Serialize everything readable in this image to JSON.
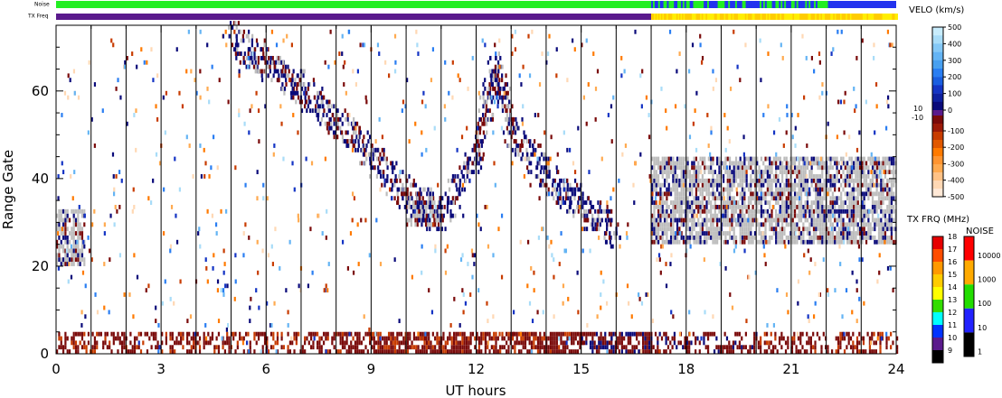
{
  "chart_data": {
    "type": "heatmap",
    "xlabel": "UT hours",
    "ylabel": "Range Gate",
    "xlim": [
      0,
      24
    ],
    "ylim": [
      0,
      75
    ],
    "x_ticks": [
      "0",
      "3",
      "6",
      "9",
      "12",
      "15",
      "18",
      "21",
      "24"
    ],
    "y_ticks": [
      "0",
      "20",
      "40",
      "60"
    ],
    "top_bars": {
      "noise_label": "Noise",
      "txfreq_label": "TX Freq",
      "noise_segments": [
        {
          "from": 0,
          "to": 17,
          "level": "green"
        },
        {
          "from": 17,
          "to": 22.2,
          "level": "mixed-blue-green"
        },
        {
          "from": 22.2,
          "to": 24,
          "level": "blue"
        }
      ],
      "txfreq_segments": [
        {
          "from": 0,
          "to": 17,
          "mhz": 10
        },
        {
          "from": 17,
          "to": 24,
          "mhz": 14.5
        }
      ]
    },
    "ground_scatter_bands": [
      {
        "x_from": 0,
        "x_to": 0.8,
        "gate_from": 20,
        "gate_to": 33
      },
      {
        "x_from": 10,
        "x_to": 11,
        "gate_from": 29,
        "gate_to": 35
      },
      {
        "x_from": 17,
        "x_to": 24,
        "gate_from": 25,
        "gate_to": 45
      }
    ],
    "legends": {
      "velocity": {
        "title": "VELO (km/s)",
        "positive_ticks": [
          "500",
          "400",
          "300",
          "200",
          "100",
          "0"
        ],
        "small_ticks": [
          "10",
          "-10"
        ],
        "negative_ticks": [
          "-100",
          "-200",
          "-300",
          "-400",
          "-500"
        ]
      },
      "txfreq": {
        "title": "TX FRQ (MHz)",
        "ticks": [
          "18",
          "17",
          "16",
          "15",
          "14",
          "13",
          "12",
          "11",
          "10",
          "9"
        ],
        "colors": [
          "#e60000",
          "#ff4d00",
          "#ff9900",
          "#ffcc00",
          "#ffff00",
          "#33dd00",
          "#00ffff",
          "#0033ff",
          "#5a1a8c",
          "#000000"
        ]
      },
      "noise": {
        "title": "NOISE",
        "ticks": [
          "10000",
          "1000",
          "100",
          "10",
          "1"
        ],
        "colors": [
          "#ff0000",
          "#ffaa00",
          "#22dd00",
          "#2222ff",
          "#000000"
        ]
      }
    },
    "colors": {
      "ground_scatter": "#bdbdbd",
      "velo_positive": [
        "#0a0a7a",
        "#1434c4",
        "#2a7ef2",
        "#64b4f4",
        "#a8dcf8"
      ],
      "velo_negative": [
        "#7a0a0a",
        "#c83c00",
        "#ff7a00",
        "#ffaa50",
        "#ffd8b4"
      ]
    }
  }
}
